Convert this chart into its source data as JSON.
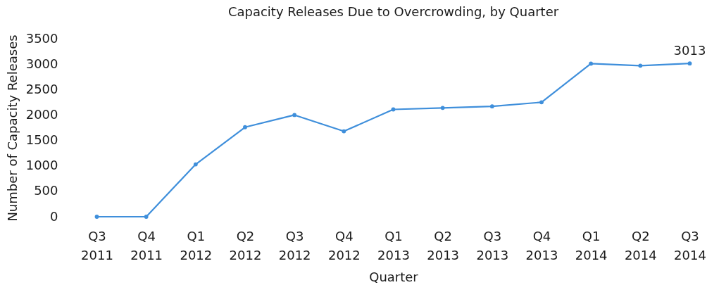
{
  "chart_data": {
    "type": "line",
    "title": "Capacity  Releases Due to Overcrowding, by Quarter",
    "xlabel": "Quarter",
    "ylabel": "Number of Capacity Releases",
    "categories": [
      "Q3 2011",
      "Q4 2011",
      "Q1 2012",
      "Q2 2012",
      "Q3 2012",
      "Q4 2012",
      "Q1 2013",
      "Q2 2013",
      "Q3 2013",
      "Q4 2013",
      "Q1 2014",
      "Q2 2014",
      "Q3 2014"
    ],
    "series": [
      {
        "color": "#3f8fdb",
        "values": [
          0,
          0,
          1030,
          1760,
          2000,
          1680,
          2110,
          2140,
          2170,
          2250,
          3010,
          2970,
          3013
        ],
        "value_labels": [
          null,
          null,
          null,
          null,
          null,
          null,
          null,
          null,
          null,
          null,
          null,
          null,
          "3013"
        ]
      }
    ],
    "ylim": [
      0,
      3500
    ],
    "yticks": [
      0,
      500,
      1000,
      1500,
      2000,
      2500,
      3000,
      3500
    ],
    "grid": false,
    "marker": "circle",
    "line_style": "solid"
  }
}
